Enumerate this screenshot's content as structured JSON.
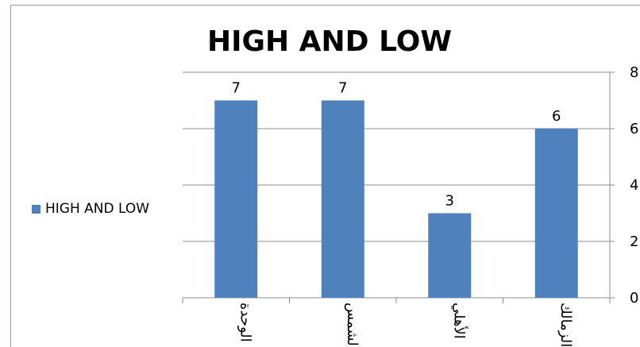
{
  "chart_data": {
    "type": "bar",
    "title": "HIGH AND LOW",
    "categories": [
      "الوحدة",
      "الشمس",
      "الأهلي",
      "الزمالك"
    ],
    "series": [
      {
        "name": "HIGH AND LOW",
        "values": [
          7,
          7,
          3,
          6
        ],
        "color": "#4f81bd"
      }
    ],
    "ylim": [
      0,
      8
    ],
    "yticks": [
      0,
      2,
      4,
      6,
      8
    ],
    "ytick_labels": [
      "0",
      "2",
      "4",
      "6",
      "8"
    ],
    "y_axis_side": "right",
    "legend_position": "left",
    "grid": true
  }
}
